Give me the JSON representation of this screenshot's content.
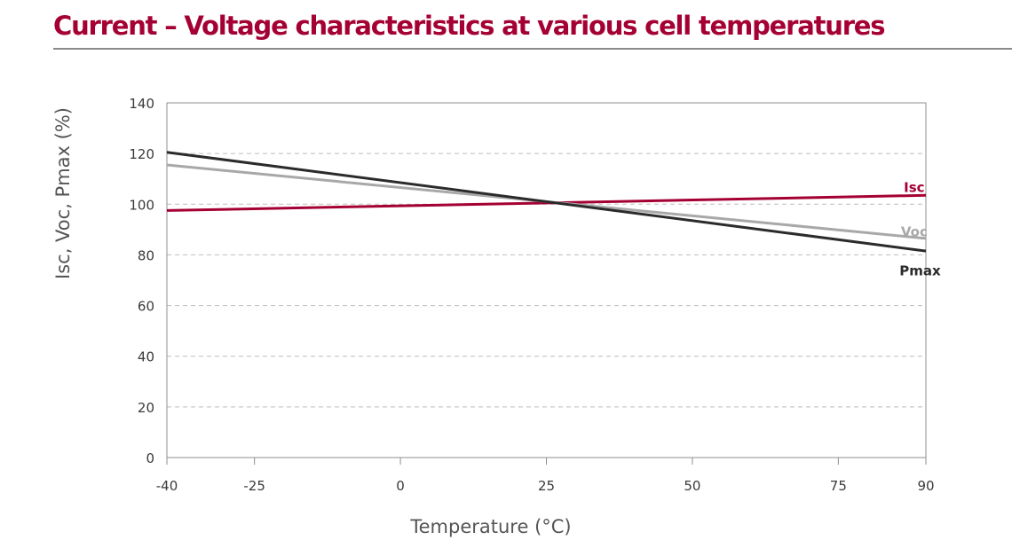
{
  "chart_data": {
    "type": "line",
    "title": "Current – Voltage characteristics at various cell temperatures",
    "xlabel": "Temperature (°C)",
    "ylabel": "Isc, Voc, Pmax (%)",
    "xlim": [
      -40,
      90
    ],
    "ylim": [
      0,
      140
    ],
    "x_ticks": [
      -40,
      -25,
      0,
      25,
      50,
      75,
      90
    ],
    "x_tick_labels": [
      "-40",
      "-25",
      "0",
      "25",
      "50",
      "75",
      "90"
    ],
    "y_ticks": [
      0,
      20,
      40,
      60,
      80,
      100,
      120,
      140
    ],
    "y_tick_labels": [
      "0",
      "20",
      "40",
      "60",
      "80",
      "100",
      "120",
      "140"
    ],
    "grid": "horizontal-dashed",
    "series": [
      {
        "name": "Isc",
        "label": "Isc",
        "color": "#a50034",
        "x": [
          -40,
          90
        ],
        "y": [
          97.5,
          103.5
        ],
        "label_at": [
          88,
          107
        ]
      },
      {
        "name": "Voc",
        "label": "Voc",
        "color": "#a8a8a8",
        "x": [
          -40,
          90
        ],
        "y": [
          115.5,
          86.5
        ],
        "label_at": [
          88,
          89.5
        ]
      },
      {
        "name": "Pmax",
        "label": "Pmax",
        "color": "#2b2b2b",
        "x": [
          -40,
          90
        ],
        "y": [
          120.5,
          81.5
        ],
        "label_at": [
          89,
          74
        ]
      }
    ]
  }
}
